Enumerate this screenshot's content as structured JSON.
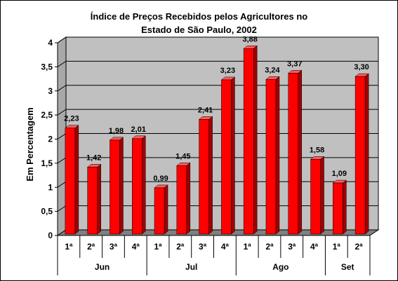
{
  "chart_data": {
    "type": "bar",
    "title_line1": "Índice de Preços Recebidos pelos Agricultores no",
    "title_line2": "Estado de São Paulo, 2002",
    "ylabel": "Em Percentagem",
    "ylim": [
      0,
      4
    ],
    "yticks": [
      "0",
      "0,5",
      "1",
      "1,5",
      "2",
      "2,5",
      "3",
      "3,5",
      "4"
    ],
    "grid": true,
    "categories": [
      "1ª",
      "2ª",
      "3ª",
      "4ª",
      "1ª",
      "2ª",
      "3ª",
      "4ª",
      "1ª",
      "2ª",
      "3ª",
      "4ª",
      "1ª",
      "2ª"
    ],
    "groups": [
      {
        "name": "Jun",
        "count": 4
      },
      {
        "name": "Jul",
        "count": 4
      },
      {
        "name": "Ago",
        "count": 4
      },
      {
        "name": "Set",
        "count": 2
      }
    ],
    "values": [
      2.23,
      1.42,
      1.98,
      2.01,
      0.99,
      1.45,
      2.41,
      3.23,
      3.88,
      3.24,
      3.37,
      1.58,
      1.09,
      3.3
    ],
    "data_labels": [
      "2,23",
      "1,42",
      "1,98",
      "2,01",
      "0,99",
      "1,45",
      "2,41",
      "3,23",
      "3,88",
      "3,24",
      "3,37",
      "1,58",
      "1,09",
      "3,30"
    ],
    "colors": {
      "bar_front": "#ff0000",
      "bar_side": "#a00000",
      "bar_top": "#ff5a5a",
      "wall": "#c0c0c0",
      "floor": "#808080"
    }
  }
}
